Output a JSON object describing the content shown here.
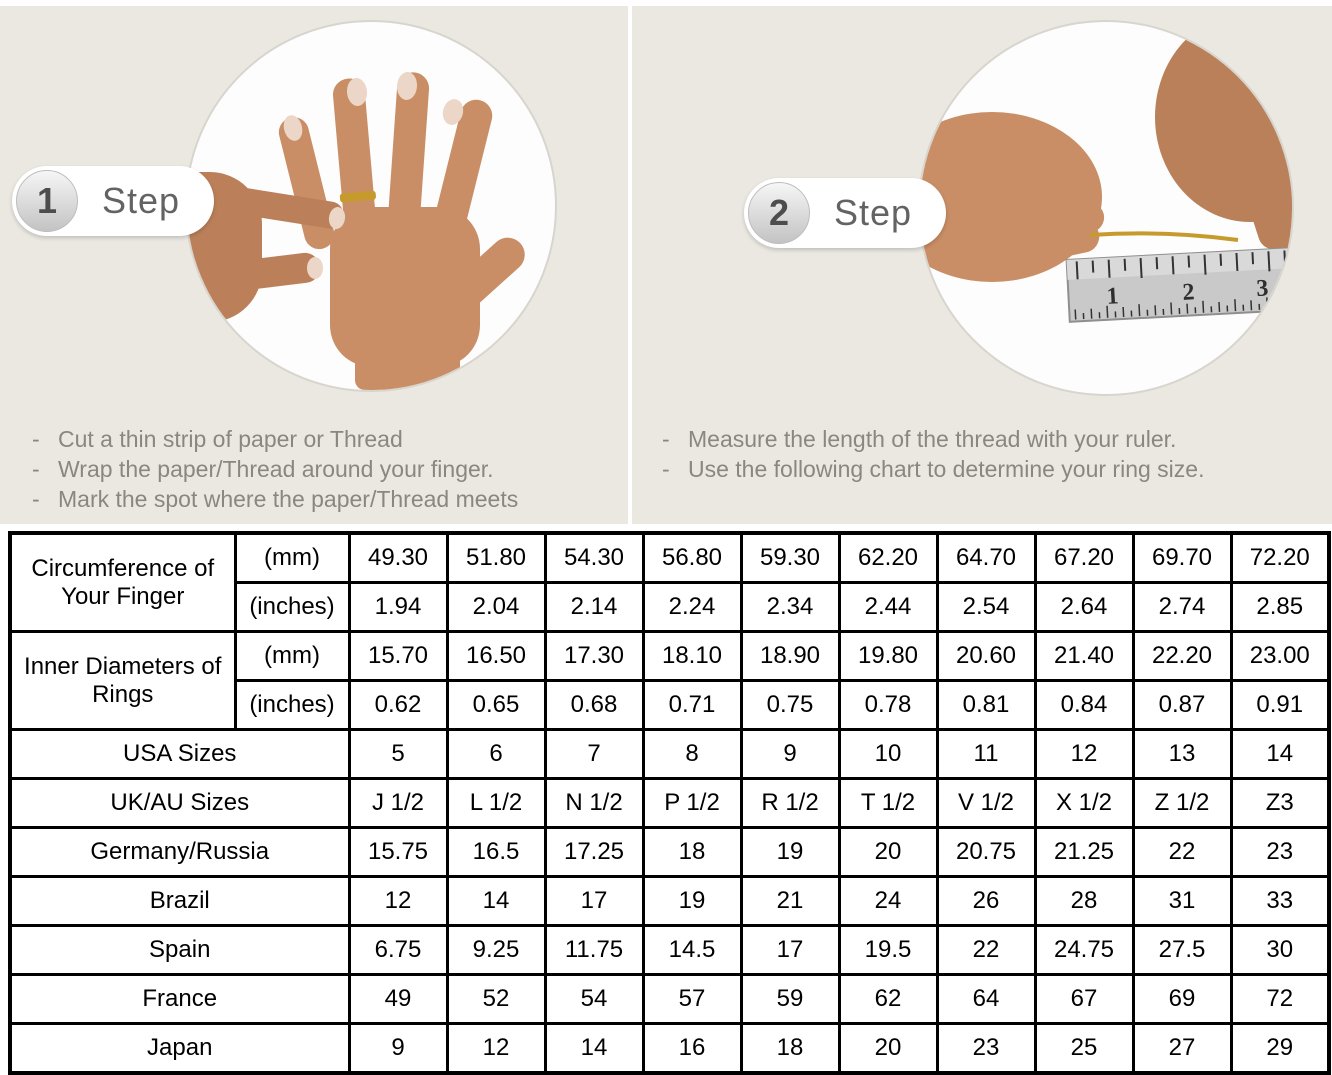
{
  "colors": {
    "background_beige": "#ebe8e2",
    "table_shaded_cell": "#d9d9d9",
    "instruction_text": "#8a8681",
    "gold_thread": "#c79a2e"
  },
  "steps": [
    {
      "number": "1",
      "label": "Step",
      "image": "hand-with-ring-photo",
      "instructions": [
        "Cut a thin strip of paper or Thread",
        "Wrap the paper/Thread around your finger.",
        "Mark the spot where the paper/Thread meets"
      ]
    },
    {
      "number": "2",
      "label": "Step",
      "image": "measuring-thread-with-ruler-photo",
      "ruler_numbers": [
        "1",
        "2",
        "3"
      ],
      "instructions": [
        "Measure the length of the thread with your ruler.",
        "Use the following chart to determine your ring size."
      ]
    }
  ],
  "table": {
    "groups": [
      {
        "label": "Circumference of Your Finger",
        "rows": [
          {
            "unit": "(mm)",
            "shaded": true,
            "values": [
              "49.30",
              "51.80",
              "54.30",
              "56.80",
              "59.30",
              "62.20",
              "64.70",
              "67.20",
              "69.70",
              "72.20"
            ]
          },
          {
            "unit": "(inches)",
            "shaded": false,
            "values": [
              "1.94",
              "2.04",
              "2.14",
              "2.24",
              "2.34",
              "2.44",
              "2.54",
              "2.64",
              "2.74",
              "2.85"
            ]
          }
        ]
      },
      {
        "label": "Inner Diameters of Rings",
        "rows": [
          {
            "unit": "(mm)",
            "shaded": false,
            "values": [
              "15.70",
              "16.50",
              "17.30",
              "18.10",
              "18.90",
              "19.80",
              "20.60",
              "21.40",
              "22.20",
              "23.00"
            ]
          },
          {
            "unit": "(inches)",
            "shaded": false,
            "values": [
              "0.62",
              "0.65",
              "0.68",
              "0.71",
              "0.75",
              "0.78",
              "0.81",
              "0.84",
              "0.87",
              "0.91"
            ]
          }
        ]
      }
    ],
    "country_rows": [
      {
        "label": "USA Sizes",
        "shaded": true,
        "values": [
          "5",
          "6",
          "7",
          "8",
          "9",
          "10",
          "11",
          "12",
          "13",
          "14"
        ]
      },
      {
        "label": "UK/AU Sizes",
        "shaded": false,
        "values": [
          "J 1/2",
          "L 1/2",
          "N 1/2",
          "P 1/2",
          "R 1/2",
          "T 1/2",
          "V 1/2",
          "X 1/2",
          "Z 1/2",
          "Z3"
        ]
      },
      {
        "label": "Germany/Russia",
        "shaded": false,
        "values": [
          "15.75",
          "16.5",
          "17.25",
          "18",
          "19",
          "20",
          "20.75",
          "21.25",
          "22",
          "23"
        ]
      },
      {
        "label": "Brazil",
        "shaded": false,
        "values": [
          "12",
          "14",
          "17",
          "19",
          "21",
          "24",
          "26",
          "28",
          "31",
          "33"
        ]
      },
      {
        "label": "Spain",
        "shaded": false,
        "values": [
          "6.75",
          "9.25",
          "11.75",
          "14.5",
          "17",
          "19.5",
          "22",
          "24.75",
          "27.5",
          "30"
        ]
      },
      {
        "label": "France",
        "shaded": false,
        "values": [
          "49",
          "52",
          "54",
          "57",
          "59",
          "62",
          "64",
          "67",
          "69",
          "72"
        ]
      },
      {
        "label": "Japan",
        "shaded": false,
        "values": [
          "9",
          "12",
          "14",
          "16",
          "18",
          "20",
          "23",
          "25",
          "27",
          "29"
        ]
      }
    ]
  }
}
